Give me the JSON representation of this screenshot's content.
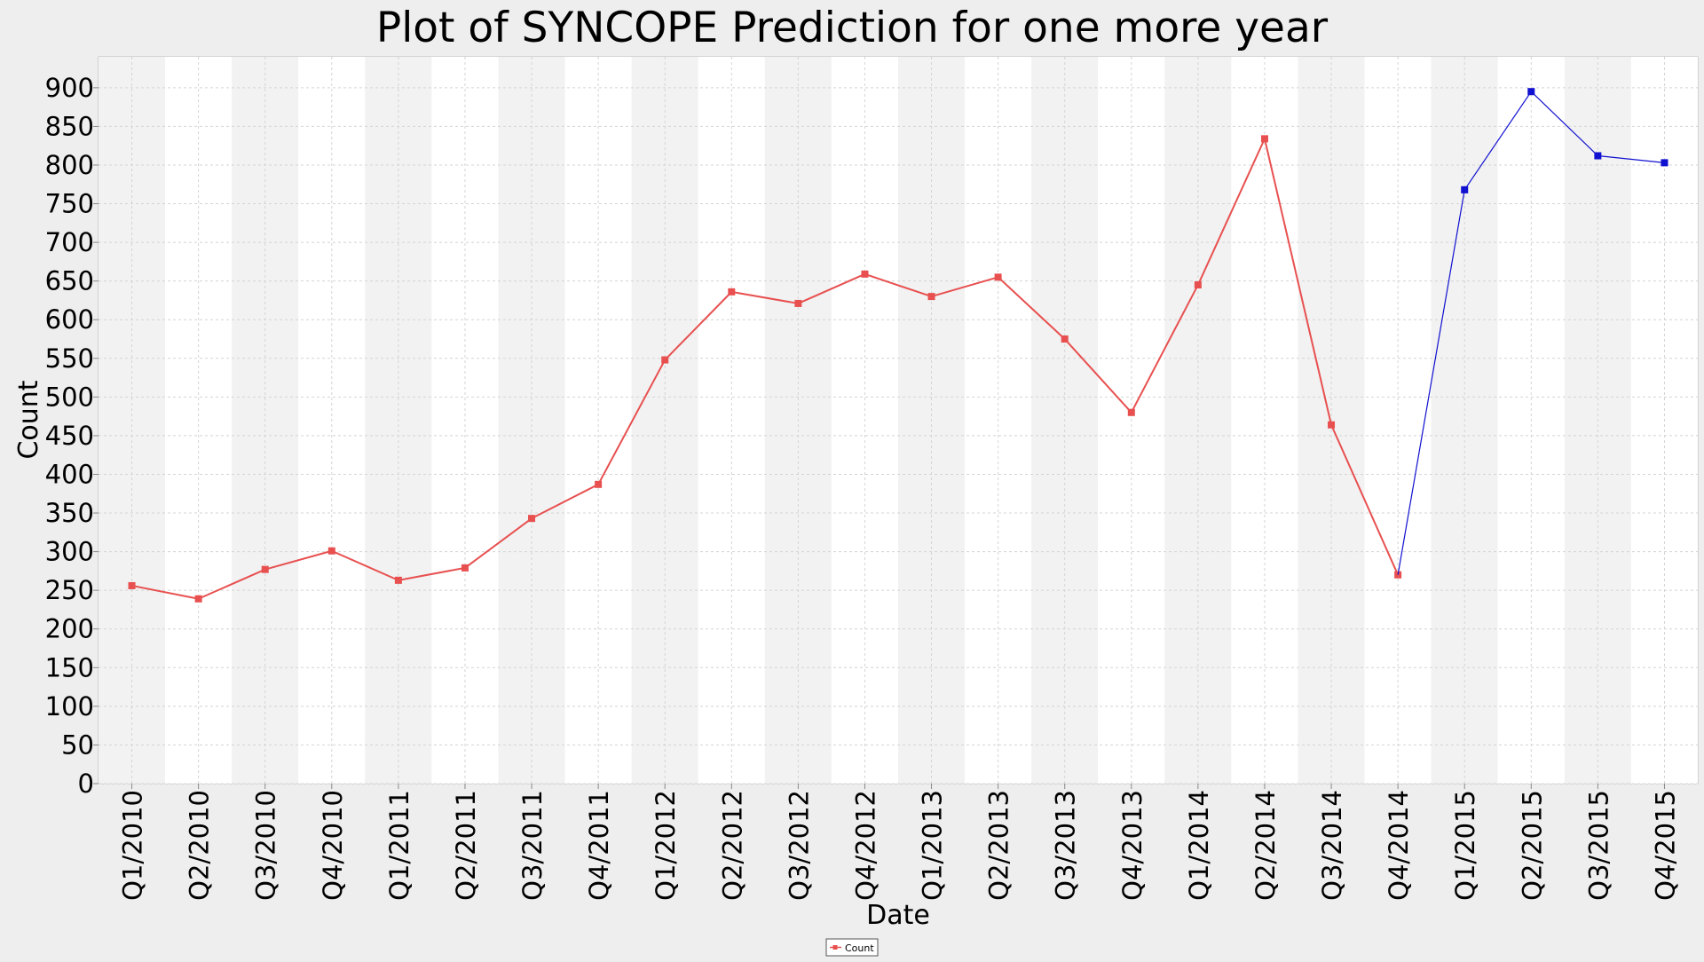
{
  "chart_data": {
    "type": "line",
    "title": "Plot of SYNCOPE Prediction for one more year",
    "xlabel": "Date",
    "ylabel": "Count",
    "ylim": [
      0,
      940
    ],
    "yticks": [
      0,
      50,
      100,
      150,
      200,
      250,
      300,
      350,
      400,
      450,
      500,
      550,
      600,
      650,
      700,
      750,
      800,
      850,
      900
    ],
    "categories": [
      "Q1/2010",
      "Q2/2010",
      "Q3/2010",
      "Q4/2010",
      "Q1/2011",
      "Q2/2011",
      "Q3/2011",
      "Q4/2011",
      "Q1/2012",
      "Q2/2012",
      "Q3/2012",
      "Q4/2012",
      "Q1/2013",
      "Q2/2013",
      "Q3/2013",
      "Q4/2013",
      "Q1/2014",
      "Q2/2014",
      "Q3/2014",
      "Q4/2014",
      "Q1/2015",
      "Q2/2015",
      "Q3/2015",
      "Q4/2015"
    ],
    "series": [
      {
        "name": "Count",
        "color": "#e85050",
        "x": [
          "Q1/2010",
          "Q2/2010",
          "Q3/2010",
          "Q4/2010",
          "Q1/2011",
          "Q2/2011",
          "Q3/2011",
          "Q4/2011",
          "Q1/2012",
          "Q2/2012",
          "Q3/2012",
          "Q4/2012",
          "Q1/2013",
          "Q2/2013",
          "Q3/2013",
          "Q4/2013",
          "Q1/2014",
          "Q2/2014",
          "Q3/2014",
          "Q4/2014"
        ],
        "values": [
          256,
          239,
          277,
          301,
          263,
          279,
          343,
          387,
          548,
          636,
          621,
          659,
          630,
          655,
          575,
          480,
          645,
          834,
          464,
          270
        ]
      },
      {
        "color": "#1010d0",
        "x": [
          "Q4/2014",
          "Q1/2015",
          "Q2/2015",
          "Q3/2015",
          "Q4/2015"
        ],
        "values": [
          270,
          768,
          895,
          812,
          803
        ]
      }
    ],
    "legend": {
      "position": "bottom-center",
      "entries": [
        "Count"
      ]
    },
    "grid": true,
    "alternating_band_colors": [
      "#f2f2f2",
      "#ffffff"
    ]
  }
}
